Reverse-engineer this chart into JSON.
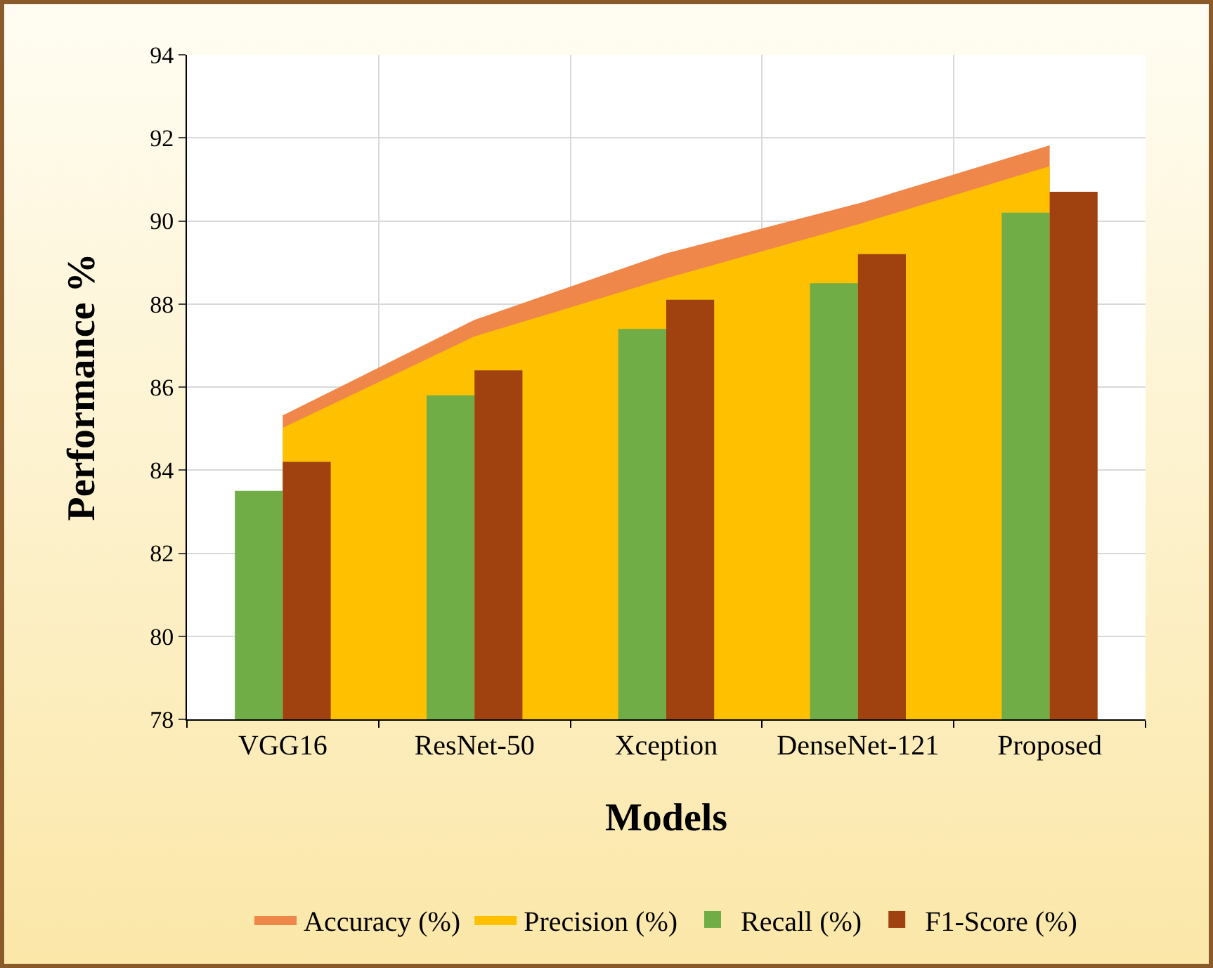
{
  "chart_data": {
    "type": "bar",
    "xlabel": "Models",
    "ylabel": "Performance %",
    "categories": [
      "VGG16",
      "ResNet-50",
      "Xception",
      "DenseNet-121",
      "Proposed"
    ],
    "series": [
      {
        "name": "Accuracy (%)",
        "type": "area",
        "color": "#f0874a",
        "values": [
          85.3,
          87.6,
          89.2,
          90.4,
          91.8
        ]
      },
      {
        "name": "Precision (%)",
        "type": "area",
        "color": "#ffc000",
        "values": [
          85.0,
          87.2,
          88.6,
          89.9,
          91.3
        ]
      },
      {
        "name": "Recall (%)",
        "color": "#70ad47",
        "values": [
          83.5,
          85.8,
          87.4,
          88.5,
          90.2
        ]
      },
      {
        "name": "F1-Score (%)",
        "color": "#a0420f",
        "values": [
          84.2,
          86.4,
          88.1,
          89.2,
          90.7
        ]
      }
    ],
    "ylim": [
      78,
      94
    ],
    "yticks": [
      78,
      80,
      82,
      84,
      86,
      88,
      90,
      92,
      94
    ],
    "grid": true,
    "legend": "bottom"
  }
}
